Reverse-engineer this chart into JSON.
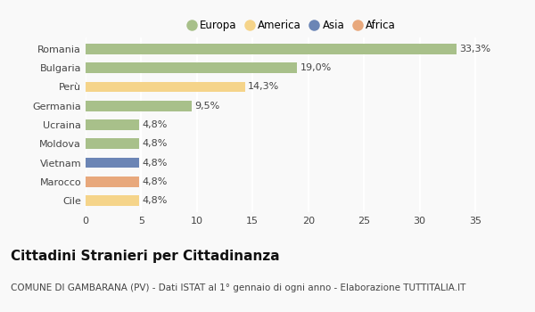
{
  "categories": [
    "Romania",
    "Bulgaria",
    "Perù",
    "Germania",
    "Ucraina",
    "Moldova",
    "Vietnam",
    "Marocco",
    "Cile"
  ],
  "values": [
    33.3,
    19.0,
    14.3,
    9.5,
    4.8,
    4.8,
    4.8,
    4.8,
    4.8
  ],
  "labels": [
    "33,3%",
    "19,0%",
    "14,3%",
    "9,5%",
    "4,8%",
    "4,8%",
    "4,8%",
    "4,8%",
    "4,8%"
  ],
  "colors": [
    "#a8c08a",
    "#a8c08a",
    "#f5d48a",
    "#a8c08a",
    "#a8c08a",
    "#a8c08a",
    "#6b85b5",
    "#e8a87c",
    "#f5d48a"
  ],
  "legend": [
    {
      "label": "Europa",
      "color": "#a8c08a"
    },
    {
      "label": "America",
      "color": "#f5d48a"
    },
    {
      "label": "Asia",
      "color": "#6b85b5"
    },
    {
      "label": "Africa",
      "color": "#e8a87c"
    }
  ],
  "xlim": [
    0,
    37
  ],
  "xticks": [
    0,
    5,
    10,
    15,
    20,
    25,
    30,
    35
  ],
  "title": "Cittadini Stranieri per Cittadinanza",
  "subtitle": "COMUNE DI GAMBARANA (PV) - Dati ISTAT al 1° gennaio di ogni anno - Elaborazione TUTTITALIA.IT",
  "background_color": "#f9f9f9",
  "grid_color": "#ffffff",
  "title_fontsize": 11,
  "subtitle_fontsize": 7.5,
  "tick_fontsize": 8,
  "label_fontsize": 8,
  "legend_fontsize": 8.5
}
